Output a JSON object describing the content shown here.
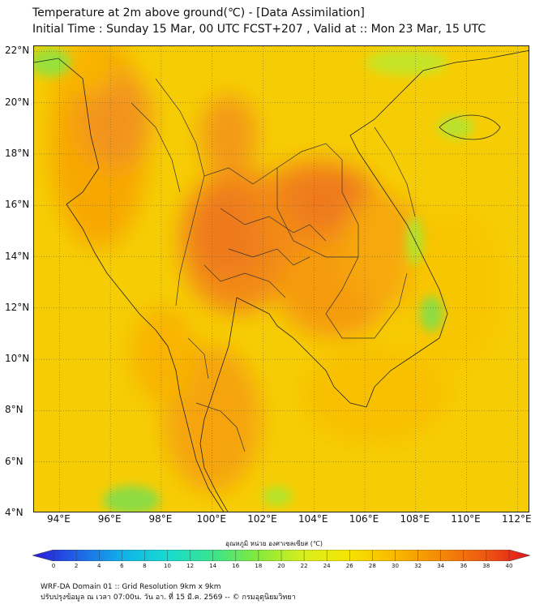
{
  "title": {
    "line1": "Temperature at 2m above ground(℃) - [Data Assimilation]",
    "line2": "Initial Time : Sunday 15 Mar, 00 UTC FCST+207 , Valid at :: Mon 23 Mar, 15 UTC"
  },
  "map": {
    "lon_range": [
      93,
      112.5
    ],
    "lat_range": [
      4,
      22.2
    ],
    "y_ticks": [
      "22°N",
      "20°N",
      "18°N",
      "16°N",
      "14°N",
      "12°N",
      "10°N",
      "8°N",
      "6°N",
      "4°N"
    ],
    "x_ticks": [
      "94°E",
      "96°E",
      "98°E",
      "100°E",
      "102°E",
      "104°E",
      "106°E",
      "108°E",
      "110°E",
      "112°E"
    ],
    "grid": true,
    "field": "2m temperature",
    "dominant_range_c": [
      28,
      36
    ]
  },
  "colorbar": {
    "label": "อุณหภูมิ หน่วย องศาเซลเซียส (℃)",
    "min": 0,
    "max": 40,
    "ticks": [
      "0",
      "2",
      "4",
      "6",
      "8",
      "10",
      "12",
      "14",
      "16",
      "18",
      "20",
      "22",
      "24",
      "26",
      "28",
      "30",
      "32",
      "34",
      "36",
      "38",
      "40"
    ],
    "colors": [
      "#2a18d8",
      "#1f63e6",
      "#10b2e8",
      "#16dcd0",
      "#3ae48a",
      "#86ea3a",
      "#d8ee1c",
      "#f6e402",
      "#f9b800",
      "#f58a06",
      "#ee5812",
      "#e2141c"
    ]
  },
  "footer": {
    "line1": "WRF-DA Domain 01 :: Grid Resolution 9km x 9km",
    "line2": "ปรับปรุงข้อมูล ณ เวลา 07:00น. วัน อา. ที่ 15 มี.ค. 2569 -- © กรมอุตุนิยมวิทยา"
  }
}
